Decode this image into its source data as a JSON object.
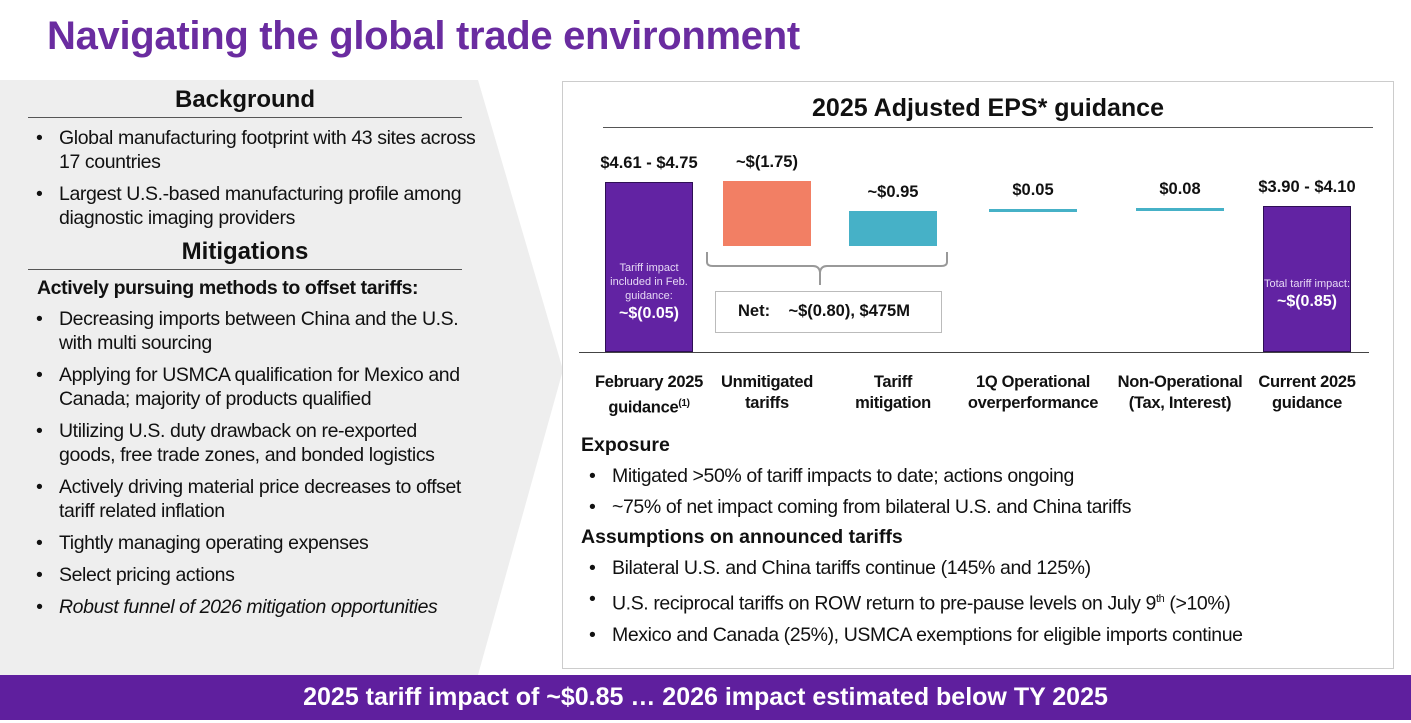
{
  "title": "Navigating the global trade environment",
  "background": {
    "heading": "Background",
    "items": [
      "Global manufacturing footprint with 43 sites across 17 countries",
      "Largest U.S.-based manufacturing profile among diagnostic imaging providers"
    ]
  },
  "mitigations": {
    "heading": "Mitigations",
    "subheading": "Actively pursuing methods to offset tariffs:",
    "items": [
      "Decreasing imports between China and the U.S. with multi sourcing",
      "Applying for USMCA qualification for Mexico and Canada; majority of products qualified",
      "Utilizing U.S. duty drawback on re-exported goods, free trade zones, and bonded logistics",
      "Actively driving material price decreases to offset tariff related inflation",
      "Tightly managing operating expenses",
      "Select pricing actions"
    ],
    "italic_item": "Robust funnel of 2026 mitigation opportunities"
  },
  "chart_data": {
    "type": "bar",
    "subtype": "waterfall",
    "title": "2025 Adjusted EPS* guidance",
    "categories": [
      "February 2025 guidance",
      "Unmitigated tariffs",
      "Tariff mitigation",
      "1Q Operational overperformance",
      "Non-Operational (Tax, Interest)",
      "Current 2025 guidance"
    ],
    "category_lines": [
      [
        "February 2025",
        "guidance"
      ],
      [
        "Unmitigated",
        "tariffs"
      ],
      [
        "Tariff",
        "mitigation"
      ],
      [
        "1Q Operational",
        "overperformance"
      ],
      [
        "Non-Operational",
        "(Tax, Interest)"
      ],
      [
        "Current 2025",
        "guidance"
      ]
    ],
    "footnote_mark": "(1)",
    "value_labels": [
      "$4.61 - $4.75",
      "~$(1.75)",
      "~$0.95",
      "$0.05",
      "$0.08",
      "$3.90 - $4.10"
    ],
    "values": [
      4.68,
      -1.75,
      0.95,
      0.05,
      0.08,
      4.0
    ],
    "colors": [
      "#6223a3",
      "#f27f64",
      "#46b1c7",
      "#46b1c7",
      "#46b1c7",
      "#6223a3"
    ],
    "feb_note": "Tariff impact included in Feb. guidance:",
    "feb_note_value": "~$(0.05)",
    "current_note": "Total tariff impact:",
    "current_note_value": "~$(0.85)",
    "net_label": "Net:",
    "net_value": "~$(0.80), $475M"
  },
  "exposure": {
    "heading": "Exposure",
    "items": [
      "Mitigated >50% of tariff impacts to date; actions ongoing",
      "~75% of net impact coming from bilateral U.S. and China tariffs"
    ]
  },
  "assumptions": {
    "heading": "Assumptions on announced tariffs",
    "items": [
      "Bilateral U.S. and China tariffs continue (145% and 125%)",
      "Mexico and Canada (25%), USMCA exemptions for eligible imports continue"
    ],
    "july_pre": "U.S. reciprocal tariffs on ROW return to pre-pause levels on July 9",
    "july_sup": "th",
    "july_post": " (>10%)"
  },
  "banner": "2025 tariff impact of ~$0.85 … 2026 impact estimated below TY 2025"
}
